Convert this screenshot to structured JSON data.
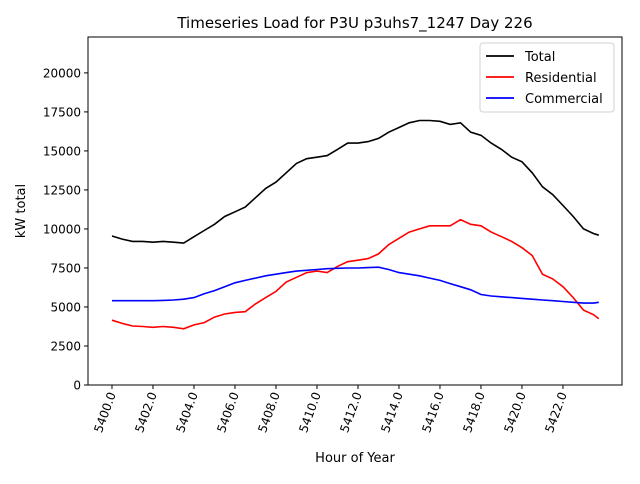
{
  "chart_data": {
    "type": "line",
    "title": "Timeseries Load for P3U p3uhs7_1247  Day 226",
    "xlabel": "Hour of Year",
    "ylabel": "kW total",
    "xlim": [
      5398.83,
      5424.88
    ],
    "ylim": [
      0,
      22300
    ],
    "xticks": [
      "5400.0",
      "5402.0",
      "5404.0",
      "5406.0",
      "5408.0",
      "5410.0",
      "5412.0",
      "5414.0",
      "5416.0",
      "5418.0",
      "5420.0",
      "5422.0"
    ],
    "yticks": [
      "0",
      "2500",
      "5000",
      "7500",
      "10000",
      "12500",
      "15000",
      "17500",
      "20000"
    ],
    "legend_position": "top-right",
    "grid": false,
    "x": [
      5400,
      5400.5,
      5401,
      5401.5,
      5402,
      5402.5,
      5403,
      5403.5,
      5404,
      5404.5,
      5405,
      5405.5,
      5406,
      5406.5,
      5407,
      5407.5,
      5408,
      5408.5,
      5409,
      5409.5,
      5410,
      5410.5,
      5411,
      5411.5,
      5412,
      5412.5,
      5413,
      5413.5,
      5414,
      5414.5,
      5415,
      5415.5,
      5416,
      5416.5,
      5417,
      5417.5,
      5418,
      5418.5,
      5419,
      5419.5,
      5420,
      5420.5,
      5421,
      5421.5,
      5422,
      5422.5,
      5423,
      5423.5,
      5423.75
    ],
    "series": [
      {
        "name": "Total",
        "color": "#000000",
        "values": [
          9550,
          9350,
          9200,
          9200,
          9150,
          9200,
          9150,
          9100,
          9500,
          9900,
          10300,
          10800,
          11100,
          11400,
          12000,
          12600,
          13000,
          13600,
          14200,
          14500,
          14600,
          14700,
          15100,
          15500,
          15500,
          15600,
          15800,
          16200,
          16500,
          16800,
          16950,
          16950,
          16900,
          16700,
          16800,
          16200,
          16000,
          15500,
          15100,
          14600,
          14300,
          13600,
          12700,
          12200,
          11500,
          10800,
          10000,
          9700,
          9600
        ]
      },
      {
        "name": "Residential",
        "color": "#ff0000",
        "values": [
          4150,
          3950,
          3780,
          3750,
          3700,
          3750,
          3700,
          3600,
          3850,
          4000,
          4350,
          4550,
          4650,
          4700,
          5200,
          5600,
          6000,
          6600,
          6900,
          7200,
          7300,
          7200,
          7600,
          7900,
          8000,
          8100,
          8400,
          9000,
          9400,
          9800,
          10000,
          10200,
          10200,
          10200,
          10600,
          10300,
          10200,
          9800,
          9500,
          9200,
          8800,
          8300,
          7100,
          6800,
          6300,
          5600,
          4800,
          4500,
          4250
        ]
      },
      {
        "name": "Commercial",
        "color": "#0000ff",
        "values": [
          5400,
          5400,
          5400,
          5400,
          5400,
          5420,
          5450,
          5500,
          5600,
          5850,
          6050,
          6300,
          6550,
          6700,
          6850,
          7000,
          7100,
          7200,
          7300,
          7350,
          7400,
          7450,
          7480,
          7500,
          7500,
          7520,
          7550,
          7400,
          7200,
          7100,
          7000,
          6850,
          6700,
          6500,
          6300,
          6100,
          5800,
          5700,
          5650,
          5600,
          5550,
          5500,
          5450,
          5400,
          5350,
          5300,
          5250,
          5250,
          5300
        ]
      }
    ]
  }
}
